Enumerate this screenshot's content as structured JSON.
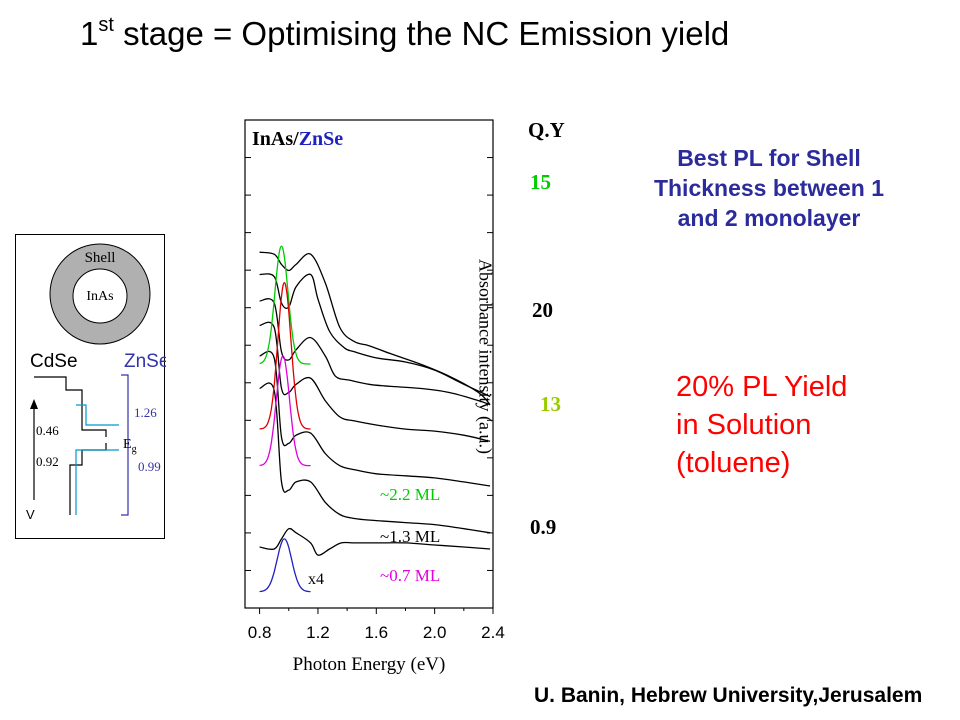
{
  "slide": {
    "title_pre": "1",
    "title_sup": "st",
    "title_post": " stage = Optimising the NC Emission yield",
    "note_blue": "Best PL for Shell Thickness between 1 and 2 monolayer",
    "note_red_lines": [
      "20% PL Yield",
      "in Solution",
      "(toluene)"
    ],
    "credit": "U. Banin, Hebrew University,Jerusalem"
  },
  "colors": {
    "blue_note": "#2b2b9c",
    "red_note": "#ff0000",
    "green": "#00cc00",
    "red_curve": "#e00000",
    "magenta": "#e000e0",
    "blue": "#2020c0",
    "yellow_green": "#99cc00",
    "inset_gray": "#b0b0b0",
    "cyan": "#0099cc",
    "znse_blue": "#3333aa"
  },
  "quantum_yield": {
    "header": "Q.Y",
    "values": [
      {
        "text": "15",
        "color": "#00cc00"
      },
      {
        "text": "20",
        "color": "#000000"
      },
      {
        "text": "13",
        "color": "#99cc00"
      },
      {
        "text": "0.9",
        "color": "#000000"
      }
    ]
  },
  "inset": {
    "shell_label": "Shell",
    "core_label": "InAs",
    "left_material": "CdSe",
    "right_material": "ZnSe",
    "offsets_left": [
      "0.46",
      "0.92"
    ],
    "offsets_right": [
      "1.26",
      "0.99"
    ],
    "gap_label": "E",
    "gap_sub": "g",
    "energy_axis": "V"
  },
  "chart_data": {
    "type": "line",
    "title": "",
    "legend_title_a": "InAs/",
    "legend_title_b": "ZnSe",
    "xlabel": "Photon Energy (eV)",
    "ylabel": "Absorbance intensity (a.u.)",
    "xlim": [
      0.7,
      2.4
    ],
    "xticks": [
      "0.8",
      "1.2",
      "1.6",
      "2.0",
      "2.4"
    ],
    "grid": false,
    "y_tick_marks": 12,
    "shell_labels": [
      {
        "text": "~2.2 ML",
        "color": "#00cc00"
      },
      {
        "text": "~1.3 ML",
        "color": "#000000"
      },
      {
        "text": "~0.7 ML",
        "color": "#e000e0"
      }
    ],
    "scale_label": "x4",
    "series": [
      {
        "kind": "absorbance",
        "color": "#000000",
        "baseline": 0.275,
        "values": [
          [
            0.95,
            0.245
          ],
          [
            1.0,
            0.23
          ],
          [
            1.05,
            0.245
          ],
          [
            1.15,
            0.27
          ],
          [
            1.25,
            0.2
          ],
          [
            1.35,
            0.09
          ],
          [
            1.45,
            0.055
          ],
          [
            1.55,
            0.045
          ],
          [
            1.7,
            0.025
          ],
          [
            1.9,
            0.0
          ],
          [
            2.1,
            -0.03
          ],
          [
            2.3,
            -0.07
          ],
          [
            2.38,
            -0.1
          ]
        ]
      },
      {
        "kind": "absorbance",
        "color": "#000000",
        "baseline": 0.22,
        "values": [
          [
            0.95,
            0.15
          ],
          [
            1.0,
            0.14
          ],
          [
            1.05,
            0.19
          ],
          [
            1.15,
            0.22
          ],
          [
            1.2,
            0.16
          ],
          [
            1.28,
            0.08
          ],
          [
            1.38,
            0.04
          ],
          [
            1.45,
            0.03
          ],
          [
            1.6,
            0.015
          ],
          [
            1.8,
            0.005
          ],
          [
            2.0,
            -0.015
          ],
          [
            2.2,
            -0.05
          ],
          [
            2.38,
            -0.08
          ]
        ]
      },
      {
        "kind": "absorbance",
        "color": "#000000",
        "baseline": 0.155,
        "values": [
          [
            0.95,
            0.03
          ],
          [
            1.0,
            0.01
          ],
          [
            1.05,
            0.035
          ],
          [
            1.15,
            0.065
          ],
          [
            1.25,
            0.02
          ],
          [
            1.32,
            -0.03
          ],
          [
            1.42,
            -0.04
          ],
          [
            1.55,
            -0.05
          ],
          [
            1.7,
            -0.055
          ],
          [
            1.9,
            -0.06
          ],
          [
            2.1,
            -0.07
          ],
          [
            2.3,
            -0.09
          ],
          [
            2.38,
            -0.1
          ]
        ]
      },
      {
        "kind": "absorbance",
        "color": "#000000",
        "baseline": 0.095,
        "values": [
          [
            0.95,
            -0.06
          ],
          [
            1.0,
            -0.07
          ],
          [
            1.05,
            -0.05
          ],
          [
            1.15,
            -0.035
          ],
          [
            1.25,
            -0.09
          ],
          [
            1.35,
            -0.13
          ],
          [
            1.45,
            -0.14
          ],
          [
            1.6,
            -0.15
          ],
          [
            1.8,
            -0.16
          ],
          [
            2.0,
            -0.165
          ],
          [
            2.2,
            -0.175
          ],
          [
            2.38,
            -0.19
          ]
        ]
      },
      {
        "kind": "absorbance",
        "color": "#000000",
        "baseline": 0.02,
        "values": [
          [
            0.95,
            -0.18
          ],
          [
            1.0,
            -0.195
          ],
          [
            1.05,
            -0.175
          ],
          [
            1.15,
            -0.17
          ],
          [
            1.25,
            -0.22
          ],
          [
            1.35,
            -0.25
          ],
          [
            1.45,
            -0.26
          ],
          [
            1.6,
            -0.27
          ],
          [
            1.8,
            -0.275
          ],
          [
            2.0,
            -0.28
          ],
          [
            2.2,
            -0.29
          ],
          [
            2.38,
            -0.3
          ]
        ]
      },
      {
        "kind": "absorbance",
        "color": "#000000",
        "baseline": -0.06,
        "values": [
          [
            0.95,
            -0.29
          ],
          [
            1.0,
            -0.31
          ],
          [
            1.05,
            -0.29
          ],
          [
            1.15,
            -0.29
          ],
          [
            1.25,
            -0.34
          ],
          [
            1.35,
            -0.37
          ],
          [
            1.45,
            -0.38
          ],
          [
            1.6,
            -0.385
          ],
          [
            1.8,
            -0.39
          ],
          [
            2.0,
            -0.395
          ],
          [
            2.2,
            -0.405
          ],
          [
            2.38,
            -0.415
          ]
        ]
      },
      {
        "kind": "absorbance",
        "color": "#000000",
        "baseline": -0.45,
        "values": [
          [
            0.95,
            -0.43
          ],
          [
            1.0,
            -0.405
          ],
          [
            1.05,
            -0.415
          ],
          [
            1.15,
            -0.44
          ],
          [
            1.2,
            -0.47
          ],
          [
            1.28,
            -0.455
          ],
          [
            1.36,
            -0.44
          ],
          [
            1.45,
            -0.44
          ],
          [
            1.6,
            -0.44
          ],
          [
            1.8,
            -0.44
          ],
          [
            2.0,
            -0.445
          ],
          [
            2.2,
            -0.45
          ],
          [
            2.38,
            -0.455
          ]
        ]
      },
      {
        "kind": "pl",
        "color": "#00cc00",
        "base": 0.0,
        "peak_x": 0.95,
        "width": 0.045,
        "height": 0.29
      },
      {
        "kind": "pl",
        "color": "#e00000",
        "base": -0.16,
        "peak_x": 0.97,
        "width": 0.045,
        "height": 0.36
      },
      {
        "kind": "pl",
        "color": "#e000e0",
        "base": -0.25,
        "peak_x": 0.96,
        "width": 0.045,
        "height": 0.27
      },
      {
        "kind": "pl",
        "color": "#2020c0",
        "base": -0.56,
        "peak_x": 0.97,
        "width": 0.05,
        "height": 0.13
      }
    ]
  }
}
